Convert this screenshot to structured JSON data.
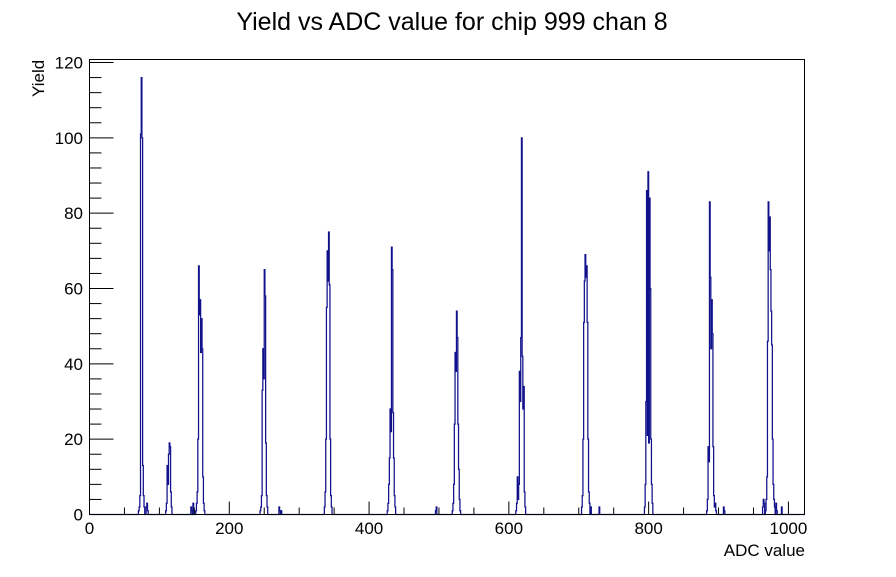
{
  "page": {
    "background": "#ffffff"
  },
  "chart_data": {
    "type": "bar",
    "subtype": "histogram-step-outline",
    "title": "Yield vs ADC value for chip 999 chan 8",
    "xlabel": "ADC value",
    "ylabel": "Yield",
    "xlim": [
      0,
      1023
    ],
    "ylim": [
      0,
      120.8
    ],
    "x_major_ticks": [
      0,
      200,
      400,
      600,
      800,
      1000
    ],
    "x_minor_step": 50,
    "y_major_ticks": [
      0,
      20,
      40,
      60,
      80,
      100,
      120
    ],
    "y_minor_step": 4,
    "grid": false,
    "legend": false,
    "line_color": "#11118c",
    "frame_color": "#000000",
    "bin_width": 1,
    "peaks_summary": [
      {
        "adc": 74,
        "yield": 116
      },
      {
        "adc": 114,
        "yield": 19
      },
      {
        "adc": 156,
        "yield": 66
      },
      {
        "adc": 250,
        "yield": 65
      },
      {
        "adc": 342,
        "yield": 75
      },
      {
        "adc": 432,
        "yield": 71
      },
      {
        "adc": 525,
        "yield": 54
      },
      {
        "adc": 618,
        "yield": 100
      },
      {
        "adc": 709,
        "yield": 69
      },
      {
        "adc": 799,
        "yield": 91
      },
      {
        "adc": 887,
        "yield": 83
      },
      {
        "adc": 971,
        "yield": 83
      }
    ],
    "bins": [
      [
        70,
        1
      ],
      [
        71,
        2
      ],
      [
        72,
        5
      ],
      [
        73,
        101
      ],
      [
        74,
        116
      ],
      [
        75,
        100
      ],
      [
        76,
        13
      ],
      [
        77,
        5
      ],
      [
        78,
        2
      ],
      [
        81,
        2
      ],
      [
        82,
        3
      ],
      [
        83,
        1
      ],
      [
        109,
        1
      ],
      [
        110,
        3
      ],
      [
        111,
        13
      ],
      [
        112,
        8
      ],
      [
        113,
        16
      ],
      [
        114,
        19
      ],
      [
        115,
        18
      ],
      [
        116,
        6
      ],
      [
        117,
        2
      ],
      [
        145,
        2
      ],
      [
        146,
        1
      ],
      [
        148,
        3
      ],
      [
        149,
        1
      ],
      [
        152,
        1
      ],
      [
        153,
        3
      ],
      [
        154,
        6
      ],
      [
        155,
        20
      ],
      [
        156,
        66
      ],
      [
        157,
        53
      ],
      [
        158,
        57
      ],
      [
        159,
        43
      ],
      [
        160,
        52
      ],
      [
        161,
        44
      ],
      [
        162,
        10
      ],
      [
        163,
        3
      ],
      [
        164,
        1
      ],
      [
        244,
        1
      ],
      [
        245,
        2
      ],
      [
        246,
        5
      ],
      [
        247,
        33
      ],
      [
        248,
        44
      ],
      [
        249,
        36
      ],
      [
        250,
        65
      ],
      [
        251,
        58
      ],
      [
        252,
        19
      ],
      [
        253,
        5
      ],
      [
        254,
        2
      ],
      [
        271,
        2
      ],
      [
        272,
        1
      ],
      [
        274,
        1
      ],
      [
        336,
        2
      ],
      [
        337,
        6
      ],
      [
        338,
        20
      ],
      [
        339,
        55
      ],
      [
        340,
        70
      ],
      [
        341,
        62
      ],
      [
        342,
        75
      ],
      [
        343,
        61
      ],
      [
        344,
        20
      ],
      [
        345,
        5
      ],
      [
        346,
        2
      ],
      [
        426,
        1
      ],
      [
        427,
        3
      ],
      [
        428,
        8
      ],
      [
        429,
        15
      ],
      [
        430,
        28
      ],
      [
        431,
        22
      ],
      [
        432,
        71
      ],
      [
        433,
        65
      ],
      [
        434,
        27
      ],
      [
        435,
        15
      ],
      [
        436,
        5
      ],
      [
        437,
        2
      ],
      [
        495,
        1
      ],
      [
        496,
        2
      ],
      [
        519,
        1
      ],
      [
        520,
        3
      ],
      [
        521,
        8
      ],
      [
        522,
        24
      ],
      [
        523,
        43
      ],
      [
        524,
        38
      ],
      [
        525,
        54
      ],
      [
        526,
        47
      ],
      [
        527,
        24
      ],
      [
        528,
        12
      ],
      [
        529,
        4
      ],
      [
        530,
        1
      ],
      [
        610,
        1
      ],
      [
        611,
        3
      ],
      [
        612,
        10
      ],
      [
        613,
        4
      ],
      [
        614,
        8
      ],
      [
        615,
        38
      ],
      [
        616,
        30
      ],
      [
        617,
        47
      ],
      [
        618,
        100
      ],
      [
        619,
        42
      ],
      [
        620,
        28
      ],
      [
        621,
        34
      ],
      [
        622,
        6
      ],
      [
        623,
        2
      ],
      [
        704,
        2
      ],
      [
        705,
        5
      ],
      [
        706,
        20
      ],
      [
        707,
        51
      ],
      [
        708,
        62
      ],
      [
        709,
        69
      ],
      [
        710,
        63
      ],
      [
        711,
        66
      ],
      [
        712,
        51
      ],
      [
        713,
        20
      ],
      [
        714,
        6
      ],
      [
        715,
        3
      ],
      [
        717,
        2
      ],
      [
        729,
        2
      ],
      [
        794,
        2
      ],
      [
        795,
        8
      ],
      [
        796,
        30
      ],
      [
        797,
        86
      ],
      [
        798,
        21
      ],
      [
        799,
        91
      ],
      [
        800,
        19
      ],
      [
        801,
        84
      ],
      [
        802,
        60
      ],
      [
        803,
        20
      ],
      [
        804,
        8
      ],
      [
        805,
        3
      ],
      [
        883,
        1
      ],
      [
        884,
        4
      ],
      [
        885,
        18
      ],
      [
        886,
        14
      ],
      [
        887,
        83
      ],
      [
        888,
        63
      ],
      [
        889,
        44
      ],
      [
        890,
        57
      ],
      [
        891,
        48
      ],
      [
        892,
        18
      ],
      [
        893,
        5
      ],
      [
        894,
        2
      ],
      [
        895,
        3
      ],
      [
        896,
        1
      ],
      [
        907,
        2
      ],
      [
        908,
        1
      ],
      [
        963,
        2
      ],
      [
        964,
        4
      ],
      [
        965,
        3
      ],
      [
        967,
        1
      ],
      [
        968,
        4
      ],
      [
        969,
        10
      ],
      [
        970,
        46
      ],
      [
        971,
        83
      ],
      [
        972,
        70
      ],
      [
        973,
        79
      ],
      [
        974,
        65
      ],
      [
        975,
        54
      ],
      [
        976,
        45
      ],
      [
        977,
        20
      ],
      [
        978,
        8
      ],
      [
        979,
        4
      ],
      [
        980,
        2
      ],
      [
        982,
        3
      ],
      [
        983,
        1
      ],
      [
        990,
        2
      ]
    ]
  }
}
